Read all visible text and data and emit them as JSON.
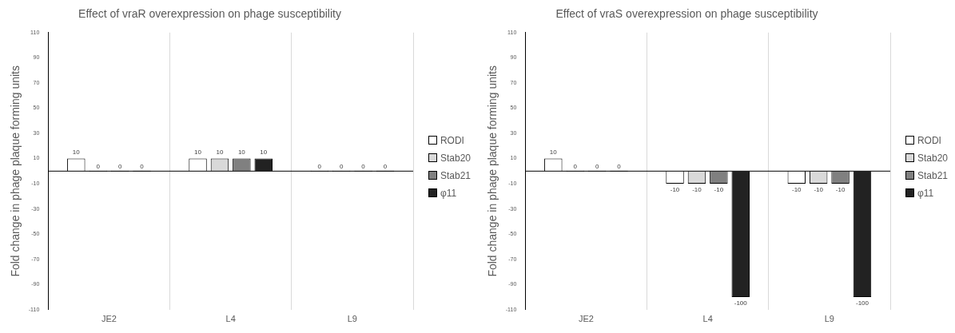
{
  "chart_data": [
    {
      "type": "bar",
      "title": "Effect of vraR overexpression on phage susceptibility",
      "ylabel": "Fold change in phage plaque forming units",
      "categories": [
        "JE2",
        "L4",
        "L9"
      ],
      "series": [
        {
          "name": "RODI",
          "color": "#ffffff",
          "values": [
            10,
            10,
            0
          ]
        },
        {
          "name": "Stab20",
          "color": "#d9d9d9",
          "values": [
            0,
            10,
            0
          ]
        },
        {
          "name": "Stab21",
          "color": "#808080",
          "values": [
            0,
            10,
            0
          ]
        },
        {
          "name": "φ11",
          "color": "#222222",
          "values": [
            0,
            10,
            0
          ]
        }
      ],
      "ylim": [
        -110,
        110
      ],
      "yticks": [
        -110,
        -90,
        -70,
        -50,
        -30,
        -10,
        10,
        30,
        50,
        70,
        90,
        110
      ],
      "grid": "x",
      "legend": "right",
      "data_labels": true
    },
    {
      "type": "bar",
      "title": "Effect of vraS overexpression on phage susceptibility",
      "ylabel": "Fold change in phage plaque forming units",
      "categories": [
        "JE2",
        "L4",
        "L9"
      ],
      "series": [
        {
          "name": "RODI",
          "color": "#ffffff",
          "values": [
            10,
            -10,
            -10
          ]
        },
        {
          "name": "Stab20",
          "color": "#d9d9d9",
          "values": [
            0,
            -10,
            -10
          ]
        },
        {
          "name": "Stab21",
          "color": "#808080",
          "values": [
            0,
            -10,
            -10
          ]
        },
        {
          "name": "φ11",
          "color": "#222222",
          "values": [
            0,
            -100,
            -100
          ]
        }
      ],
      "ylim": [
        -110,
        110
      ],
      "yticks": [
        -110,
        -90,
        -70,
        -50,
        -30,
        -10,
        10,
        30,
        50,
        70,
        90,
        110
      ],
      "grid": "x",
      "legend": "right",
      "data_labels": true
    }
  ]
}
